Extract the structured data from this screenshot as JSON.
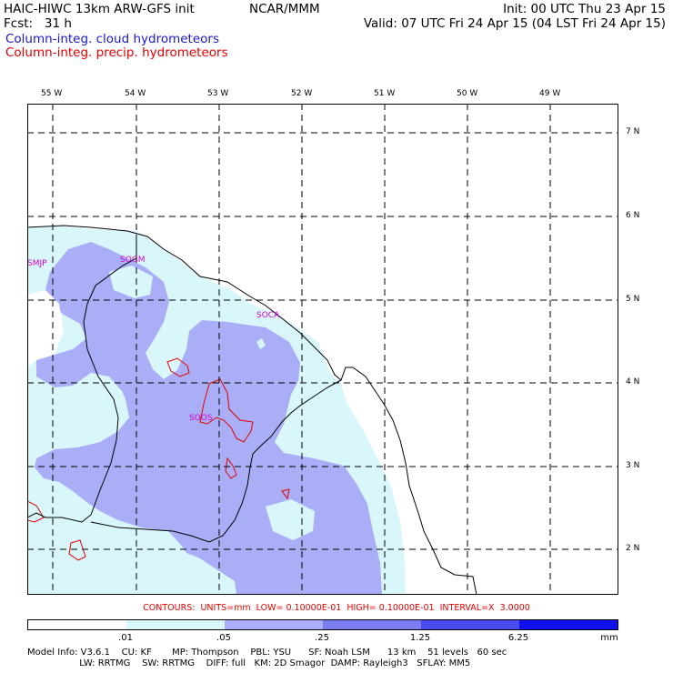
{
  "header": {
    "model": "HAIC-HIWC 13km ARW-GFS init",
    "institution": "NCAR/MMM",
    "init": "Init: 00 UTC Thu 23 Apr 15",
    "fcst": "Fcst:   31 h",
    "valid": "Valid: 07 UTC Fri 24 Apr 15 (04 LST Fri 24 Apr 15)",
    "field1": "Column-integ. cloud hydrometeors",
    "field2": "Column-integ. precip. hydrometeors",
    "field1_color": "#1818c8",
    "field2_color": "#e00000"
  },
  "map": {
    "lon_labels": [
      "55 W",
      "54 W",
      "53 W",
      "52 W",
      "51 W",
      "50 W",
      "49 W"
    ],
    "lat_labels": [
      "7 N",
      "6 N",
      "5 N",
      "4 N",
      "3 N",
      "2 N"
    ],
    "stations": [
      "SMJP",
      "SOGM",
      "SOCA",
      "SOOS"
    ],
    "station_color": "#d000d0",
    "light_fill": "#d9f7fb",
    "medium_fill": "#a9aef7",
    "contour_color": "#e00000"
  },
  "contour_info": "CONTOURS:  UNITS=mm  LOW= 0.10000E-01  HIGH= 0.10000E-01  INTERVAL=X  3.0000",
  "colorbar": {
    "ticks": [
      ".01",
      ".05",
      ".25",
      "1.25",
      "6.25"
    ],
    "units": "mm",
    "colors": [
      "#ffffff",
      "#d9f7fb",
      "#a9aef7",
      "#7a7ef0",
      "#4a4cf0",
      "#1010ee"
    ]
  },
  "footer": {
    "line1": "Model Info: V3.6.1    CU: KF       MP: Thompson    PBL: YSU      SF: Noah LSM      13 km    51 levels   60 sec",
    "line2": "                  LW: RRTMG    SW: RRTMG    DIFF: full   KM: 2D Smagor  DAMP: Rayleigh3   SFLAY: MM5"
  }
}
